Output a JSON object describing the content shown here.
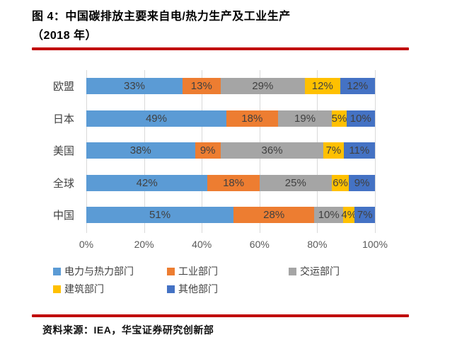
{
  "title": {
    "line1": "图 4：中国碳排放主要来自电/热力生产及工业生产",
    "line2": "（2018 年）"
  },
  "colors": {
    "accent_rule": "#C00000",
    "grid": "#D9D9D9",
    "data_label_text": "#404040",
    "axis_text": "#595959"
  },
  "chart_data": {
    "type": "bar",
    "orientation": "horizontal-stacked",
    "categories": [
      "欧盟",
      "日本",
      "美国",
      "全球",
      "中国"
    ],
    "series": [
      {
        "name": "电力与热力部门",
        "color": "#5B9BD5",
        "values": [
          33,
          49,
          38,
          42,
          51
        ]
      },
      {
        "name": "工业部门",
        "color": "#ED7D31",
        "values": [
          13,
          18,
          9,
          18,
          28
        ]
      },
      {
        "name": "交运部门",
        "color": "#A5A5A5",
        "values": [
          29,
          19,
          36,
          25,
          10
        ]
      },
      {
        "name": "建筑部门",
        "color": "#FFC000",
        "values": [
          12,
          5,
          7,
          6,
          4
        ]
      },
      {
        "name": "其他部门",
        "color": "#4472C4",
        "values": [
          12,
          10,
          11,
          9,
          7
        ]
      }
    ],
    "x_ticks": [
      "0%",
      "20%",
      "40%",
      "60%",
      "80%",
      "100%"
    ],
    "xlim": [
      0,
      100
    ],
    "data_label_format": "{v}%",
    "grid": true,
    "legend_position": "bottom"
  },
  "footer": {
    "source_label": "资料来源：IEA，华宝证券研究创新部"
  }
}
